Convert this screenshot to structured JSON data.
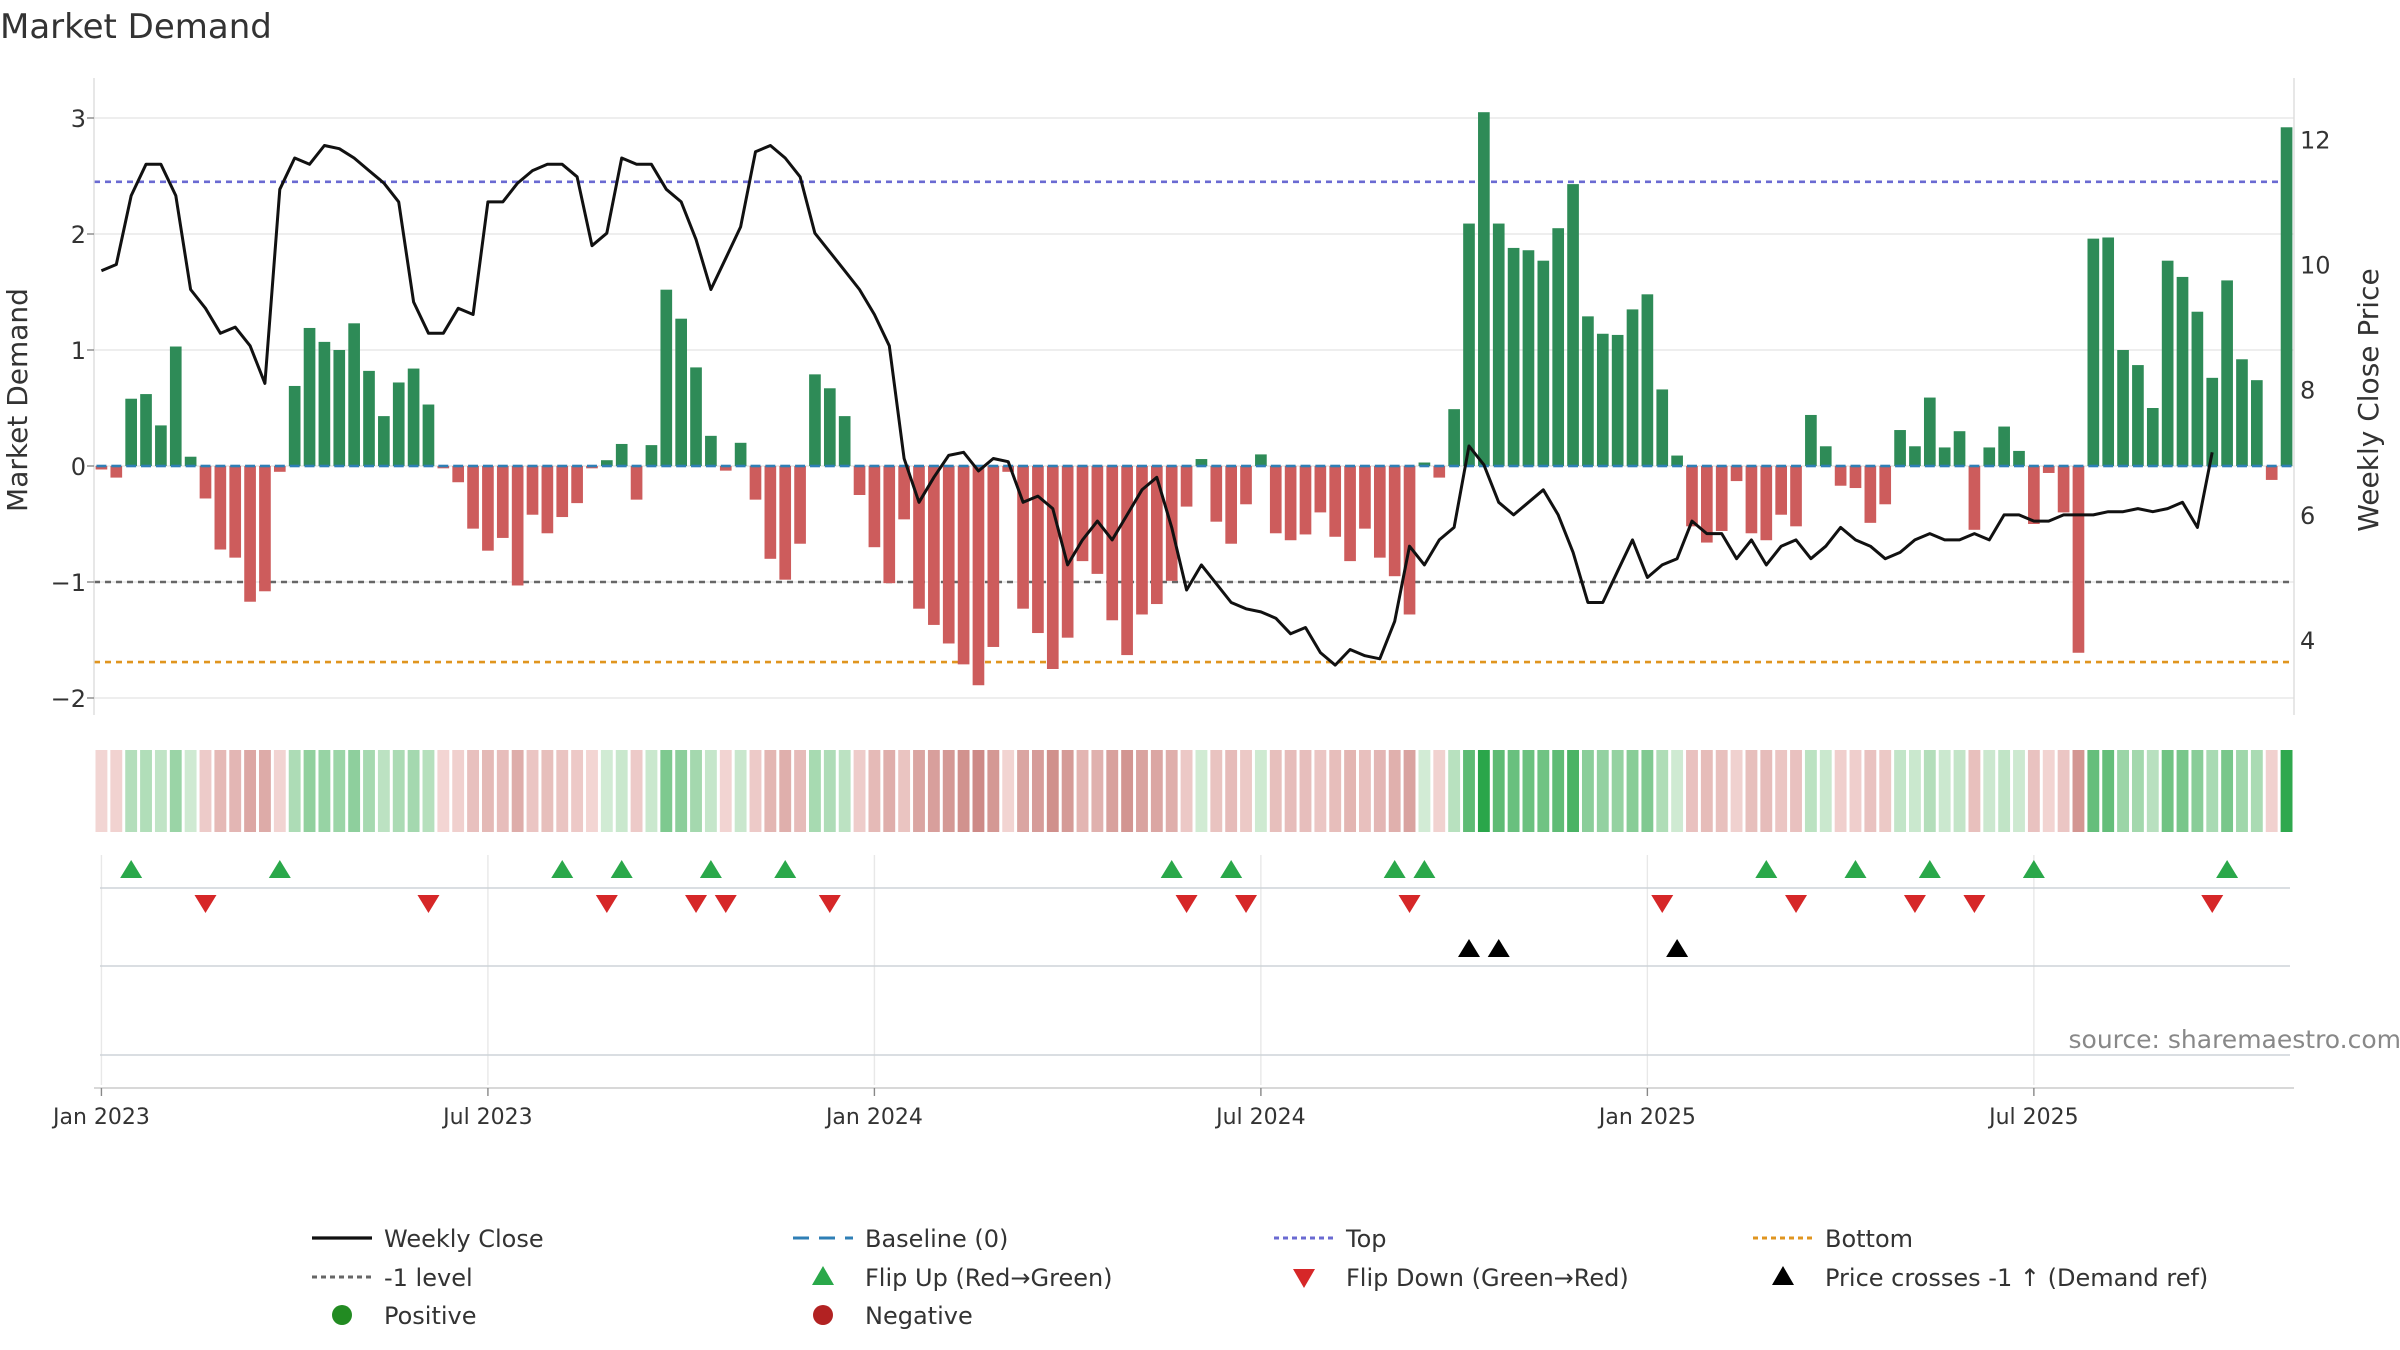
{
  "chart_data": {
    "type": "bar",
    "title": "Market Demand",
    "ylabel": "Market Demand",
    "y2label": "Weekly Close Price",
    "ylim": [
      -2.2,
      3.3
    ],
    "y2lim": [
      3.0,
      12.8
    ],
    "yticks": [
      "3",
      "2",
      "1",
      "0",
      "−1",
      "−2"
    ],
    "ytick_values": [
      3,
      2,
      1,
      0,
      -1,
      -2
    ],
    "y2ticks": [
      "12",
      "10",
      "8",
      "6",
      "4"
    ],
    "y2tick_values": [
      12,
      10,
      8,
      6,
      4
    ],
    "xticks": [
      "Jan 2023",
      "Jul 2023",
      "Jan 2024",
      "Jul 2024",
      "Jan 2025",
      "Jul 2025"
    ],
    "xtick_weeks": [
      0.5,
      26.5,
      52.5,
      78.5,
      104.5,
      130.5
    ],
    "reference_lines": {
      "top": 2.45,
      "minus_one": -1.0,
      "bottom": -1.69,
      "baseline": 0
    },
    "demand": [
      -0.03,
      -0.1,
      0.58,
      0.62,
      0.35,
      1.03,
      0.08,
      -0.28,
      -0.72,
      -0.79,
      -1.17,
      -1.08,
      -0.05,
      0.69,
      1.19,
      1.07,
      1.0,
      1.23,
      0.82,
      0.43,
      0.72,
      0.84,
      0.53,
      -0.02,
      -0.14,
      -0.54,
      -0.73,
      -0.62,
      -1.03,
      -0.42,
      -0.58,
      -0.44,
      -0.32,
      -0.02,
      0.05,
      0.19,
      -0.29,
      0.18,
      1.52,
      1.27,
      0.85,
      0.26,
      -0.04,
      0.2,
      -0.29,
      -0.8,
      -0.98,
      -0.67,
      0.79,
      0.67,
      0.43,
      -0.25,
      -0.7,
      -1.01,
      -0.46,
      -1.23,
      -1.37,
      -1.53,
      -1.71,
      -1.89,
      -1.56,
      -0.05,
      -1.23,
      -1.44,
      -1.75,
      -1.48,
      -0.82,
      -0.93,
      -1.33,
      -1.63,
      -1.28,
      -1.19,
      -0.99,
      -0.35,
      0.06,
      -0.48,
      -0.67,
      -0.33,
      0.1,
      -0.58,
      -0.64,
      -0.59,
      -0.4,
      -0.61,
      -0.82,
      -0.54,
      -0.79,
      -0.95,
      -1.28,
      0.03,
      -0.1,
      0.49,
      2.09,
      3.05,
      2.09,
      1.88,
      1.86,
      1.77,
      2.05,
      2.43,
      1.29,
      1.14,
      1.13,
      1.35,
      1.48,
      0.66,
      0.09,
      -0.52,
      -0.66,
      -0.56,
      -0.13,
      -0.58,
      -0.64,
      -0.42,
      -0.52,
      0.44,
      0.17,
      -0.17,
      -0.19,
      -0.49,
      -0.33,
      0.31,
      0.17,
      0.59,
      0.16,
      0.3,
      -0.55,
      0.16,
      0.34,
      0.13,
      -0.5,
      -0.06,
      -0.4,
      -1.61,
      1.96,
      1.97,
      1.0,
      0.87,
      0.5,
      1.77,
      1.63,
      1.33,
      0.76,
      1.6,
      0.92,
      0.74,
      -0.12,
      2.92
    ],
    "price": [
      9.9,
      10.0,
      11.1,
      11.6,
      11.6,
      11.1,
      9.6,
      9.3,
      8.9,
      9.0,
      8.7,
      8.1,
      11.2,
      11.7,
      11.6,
      11.9,
      11.85,
      11.7,
      11.5,
      11.3,
      11.0,
      9.4,
      8.9,
      8.9,
      9.3,
      9.2,
      11.0,
      11.0,
      11.3,
      11.5,
      11.6,
      11.6,
      11.4,
      10.3,
      10.5,
      11.7,
      11.6,
      11.6,
      11.2,
      11.0,
      10.4,
      9.6,
      10.1,
      10.6,
      11.8,
      11.9,
      11.7,
      11.4,
      10.5,
      10.2,
      9.9,
      9.6,
      9.2,
      8.7,
      6.9,
      6.2,
      6.6,
      6.95,
      7.0,
      6.7,
      6.9,
      6.85,
      6.2,
      6.3,
      6.1,
      5.2,
      5.6,
      5.9,
      5.6,
      6.0,
      6.4,
      6.6,
      5.8,
      4.8,
      5.2,
      4.9,
      4.6,
      4.5,
      4.45,
      4.35,
      4.1,
      4.2,
      3.8,
      3.6,
      3.85,
      3.75,
      3.7,
      4.3,
      5.5,
      5.2,
      5.6,
      5.8,
      7.1,
      6.8,
      6.2,
      6.0,
      6.2,
      6.4,
      6.0,
      5.4,
      4.6,
      4.6,
      5.1,
      5.6,
      5.0,
      5.2,
      5.3,
      5.9,
      5.7,
      5.7,
      5.3,
      5.6,
      5.2,
      5.5,
      5.6,
      5.3,
      5.5,
      5.8,
      5.6,
      5.5,
      5.3,
      5.4,
      5.6,
      5.7,
      5.6,
      5.6,
      5.7,
      5.6,
      6.0,
      6.0,
      5.9,
      5.9,
      6.0,
      6.0,
      6.0,
      6.05,
      6.05,
      6.1,
      6.05,
      6.1,
      6.2,
      5.8,
      7.0
    ],
    "flip_up_weeks": [
      2.5,
      12.5,
      31.5,
      35.5,
      41.5,
      46.5,
      72.5,
      76.5,
      87.5,
      89.5,
      112.5,
      118.5,
      123.5,
      130.5,
      143.5
    ],
    "flip_down_weeks": [
      7.5,
      22.5,
      34.5,
      40.5,
      42.5,
      49.5,
      73.5,
      77.5,
      88.5,
      105.5,
      114.5,
      122.5,
      126.5,
      142.5
    ],
    "price_cross_weeks": [
      92.5,
      94.5,
      106.5
    ],
    "legend": [
      {
        "label": "Weekly Close",
        "marker": "line-solid",
        "color": "#111111"
      },
      {
        "label": "Baseline (0)",
        "marker": "line-dash",
        "color": "#2f7fb6"
      },
      {
        "label": "Top",
        "marker": "line-dot",
        "color": "#6a6ad2"
      },
      {
        "label": "Bottom",
        "marker": "line-dot",
        "color": "#e0951f"
      },
      {
        "label": "-1 level",
        "marker": "line-dot",
        "color": "#666666"
      },
      {
        "label": "Flip Up (Red→Green)",
        "marker": "triangle-up",
        "color": "#2aa84a"
      },
      {
        "label": "Flip Down (Green→Red)",
        "marker": "triangle-down",
        "color": "#d62728"
      },
      {
        "label": "Price crosses -1 ↑ (Demand ref)",
        "marker": "triangle-up",
        "color": "#000000"
      },
      {
        "label": "Positive",
        "marker": "circle",
        "color": "#228b22"
      },
      {
        "label": "Negative",
        "marker": "circle",
        "color": "#b22222"
      }
    ],
    "legend_position": "bottom",
    "source": "source: sharemaestro.com"
  },
  "colors": {
    "positive_bar": "#2e8b57",
    "negative_bar": "#cd5c5c",
    "price_line": "#111111",
    "top_line": "#6a6ad2",
    "bottom_line": "#e0951f",
    "minus_one_line": "#666666",
    "baseline": "#2f7fb6",
    "flip_up": "#2aa84a",
    "flip_down": "#d62728",
    "price_cross": "#000000",
    "grid": "#e8e8e8",
    "axis_text": "#333333",
    "source_text": "#888888"
  }
}
